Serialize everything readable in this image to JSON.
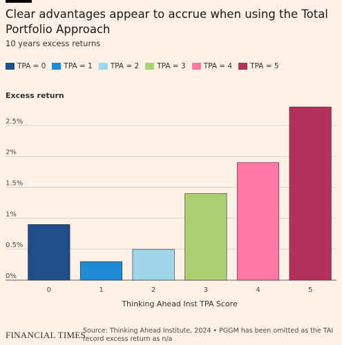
{
  "chart_data": {
    "type": "bar",
    "title": "Clear advantages appear to accrue when using the Total Portfolio Approach",
    "subtitle": "10 years excess returns",
    "legend": [
      "TPA = 0",
      "TPA = 1",
      "TPA = 2",
      "TPA = 3",
      "TPA = 4",
      "TPA = 5"
    ],
    "colors": [
      "#1f4e89",
      "#1e8ad3",
      "#9fd6ea",
      "#accf72",
      "#ff78a6",
      "#b3305c"
    ],
    "categories": [
      "0",
      "1",
      "2",
      "3",
      "4",
      "5"
    ],
    "values": [
      0.9,
      0.3,
      0.5,
      1.4,
      1.9,
      2.8
    ],
    "y_label": "Excess return",
    "x_label": "Thinking Ahead Inst TPA Score",
    "ylim": [
      0,
      2.8
    ],
    "yticks": [
      {
        "value": 0,
        "label": "0%"
      },
      {
        "value": 0.5,
        "label": "0.5%"
      },
      {
        "value": 1,
        "label": "1%"
      },
      {
        "value": 1.5,
        "label": "1.5%"
      },
      {
        "value": 2,
        "label": "2%"
      },
      {
        "value": 2.5,
        "label": "2.5%"
      }
    ],
    "grid": true,
    "source": "Source: Thinking Ahead Institute, 2024 • PGGM has been omitted as the TAI record excess return as n/a",
    "brand": "FINANCIAL TIMES"
  }
}
